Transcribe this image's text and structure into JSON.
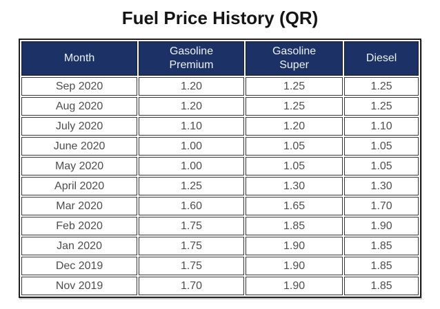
{
  "title": "Fuel Price History (QR)",
  "colors": {
    "header_bg": "#1c3166",
    "header_text": "#eef1f8",
    "body_text": "#4d4d4d",
    "border": "#1f1f1f"
  },
  "table": {
    "columns": [
      {
        "label": "Month",
        "line1": "Month",
        "line2": ""
      },
      {
        "label": "Gasoline Premium",
        "line1": "Gasoline",
        "line2": "Premium"
      },
      {
        "label": "Gasoline Super",
        "line1": "Gasoline",
        "line2": "Super"
      },
      {
        "label": "Diesel",
        "line1": "Diesel",
        "line2": ""
      }
    ]
  },
  "chart_data": {
    "type": "table",
    "title": "Fuel Price History (QR)",
    "categories": [
      "Sep 2020",
      "Aug 2020",
      "July 2020",
      "June 2020",
      "May 2020",
      "April 2020",
      "Mar 2020",
      "Feb 2020",
      "Jan 2020",
      "Dec 2019",
      "Nov 2019"
    ],
    "series": [
      {
        "name": "Gasoline Premium",
        "values": [
          1.2,
          1.2,
          1.1,
          1.0,
          1.0,
          1.25,
          1.6,
          1.75,
          1.75,
          1.75,
          1.7
        ]
      },
      {
        "name": "Gasoline Super",
        "values": [
          1.25,
          1.25,
          1.2,
          1.05,
          1.05,
          1.3,
          1.65,
          1.85,
          1.9,
          1.9,
          1.9
        ]
      },
      {
        "name": "Diesel",
        "values": [
          1.25,
          1.25,
          1.1,
          1.05,
          1.05,
          1.3,
          1.7,
          1.9,
          1.85,
          1.85,
          1.85
        ]
      }
    ],
    "rows": [
      {
        "month": "Sep 2020",
        "gasoline_premium": "1.20",
        "gasoline_super": "1.25",
        "diesel": "1.25"
      },
      {
        "month": "Aug 2020",
        "gasoline_premium": "1.20",
        "gasoline_super": "1.25",
        "diesel": "1.25"
      },
      {
        "month": "July 2020",
        "gasoline_premium": "1.10",
        "gasoline_super": "1.20",
        "diesel": "1.10"
      },
      {
        "month": "June 2020",
        "gasoline_premium": "1.00",
        "gasoline_super": "1.05",
        "diesel": "1.05"
      },
      {
        "month": "May 2020",
        "gasoline_premium": "1.00",
        "gasoline_super": "1.05",
        "diesel": "1.05"
      },
      {
        "month": "April 2020",
        "gasoline_premium": "1.25",
        "gasoline_super": "1.30",
        "diesel": "1.30"
      },
      {
        "month": "Mar 2020",
        "gasoline_premium": "1.60",
        "gasoline_super": "1.65",
        "diesel": "1.70"
      },
      {
        "month": "Feb 2020",
        "gasoline_premium": "1.75",
        "gasoline_super": "1.85",
        "diesel": "1.90"
      },
      {
        "month": "Jan 2020",
        "gasoline_premium": "1.75",
        "gasoline_super": "1.90",
        "diesel": "1.85"
      },
      {
        "month": "Dec 2019",
        "gasoline_premium": "1.75",
        "gasoline_super": "1.90",
        "diesel": "1.85"
      },
      {
        "month": "Nov 2019",
        "gasoline_premium": "1.70",
        "gasoline_super": "1.90",
        "diesel": "1.85"
      }
    ]
  }
}
